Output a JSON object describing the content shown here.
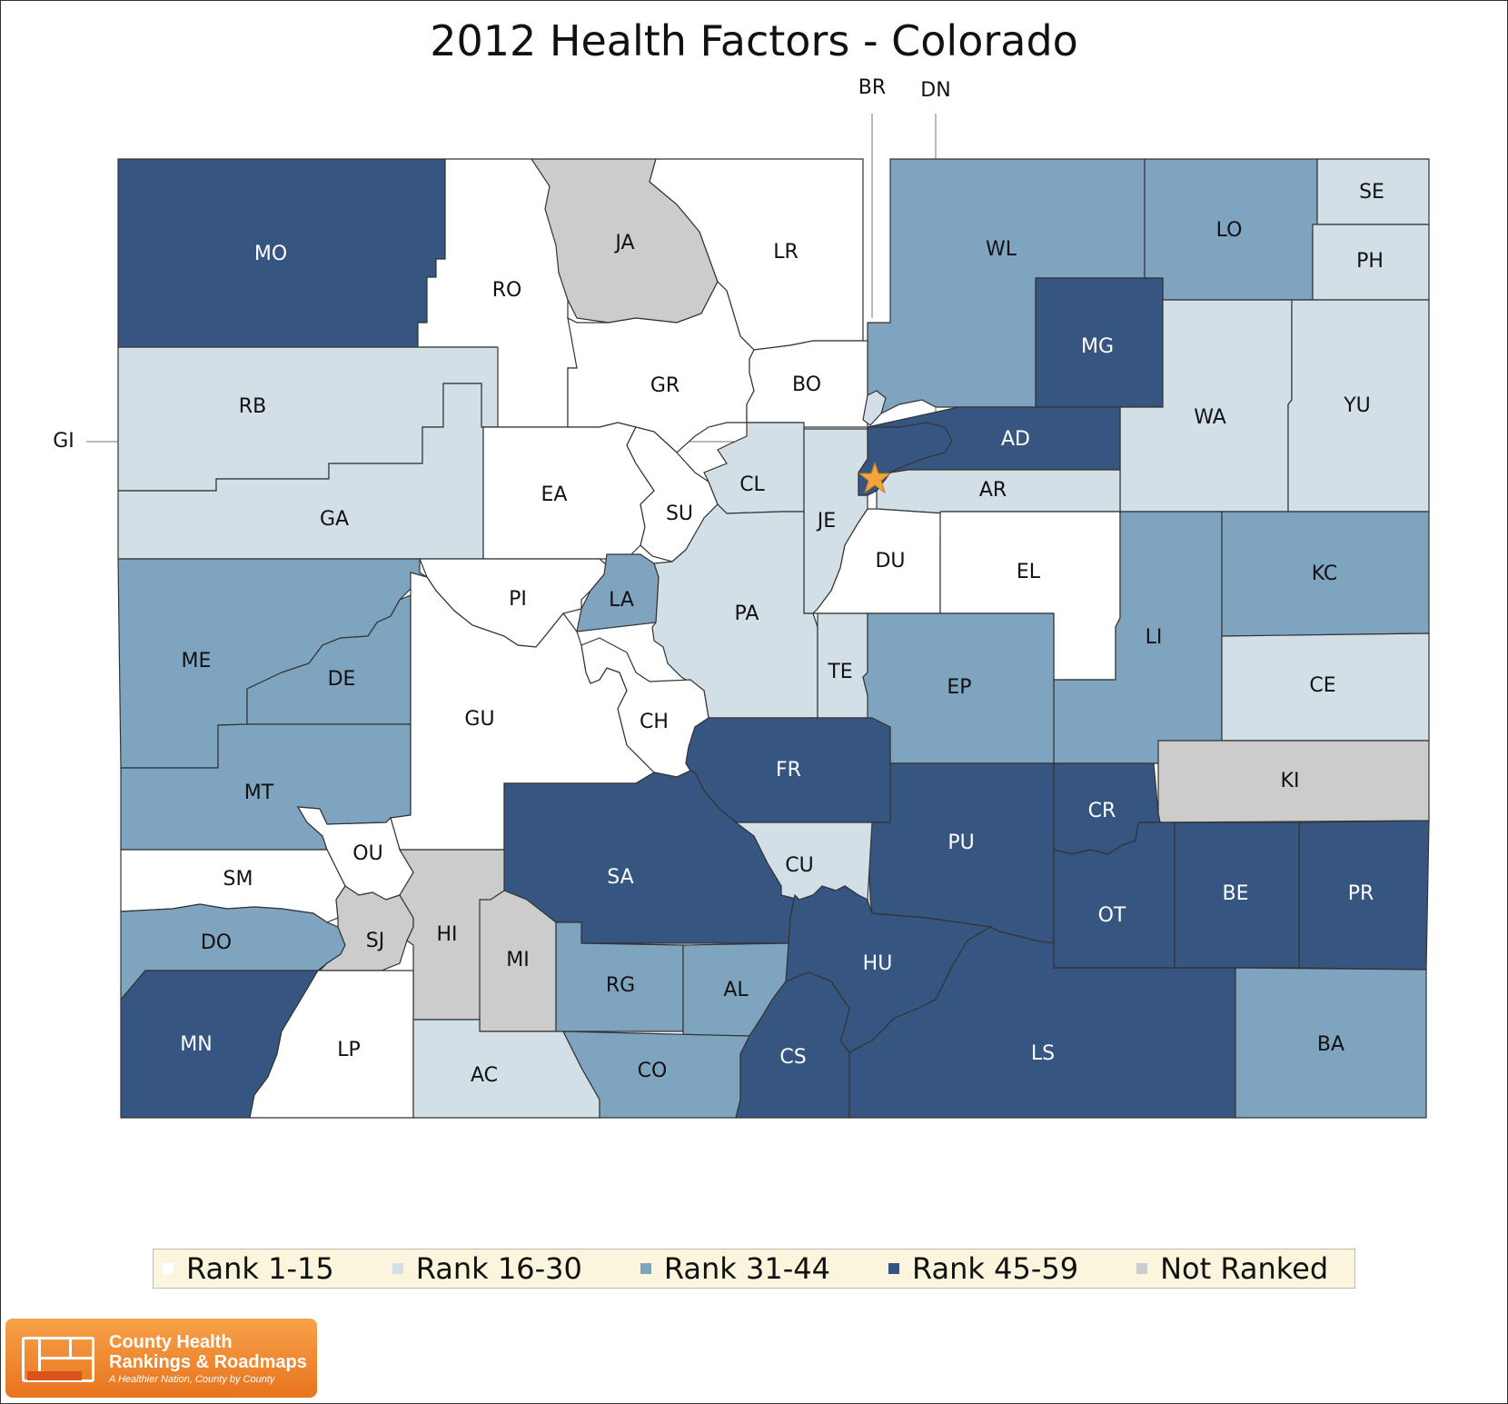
{
  "title": "2012 Health Factors - Colorado",
  "colors": {
    "rank_1_15": "#ffffff",
    "rank_16_30": "#d3dfe7",
    "rank_31_44": "#7fa4bf",
    "rank_45_59": "#365681",
    "not_ranked": "#cccccc",
    "star": "#f5a43a"
  },
  "legend": [
    {
      "label": "Rank 1-15",
      "color_key": "rank_1_15"
    },
    {
      "label": "Rank 16-30",
      "color_key": "rank_16_30"
    },
    {
      "label": "Rank 31-44",
      "color_key": "rank_31_44"
    },
    {
      "label": "Rank 45-59",
      "color_key": "rank_45_59"
    },
    {
      "label": "Not Ranked",
      "color_key": "not_ranked"
    }
  ],
  "counties": [
    {
      "abbr": "MO",
      "rank_group": "rank_45_59"
    },
    {
      "abbr": "RO",
      "rank_group": "rank_1_15"
    },
    {
      "abbr": "JA",
      "rank_group": "not_ranked"
    },
    {
      "abbr": "LR",
      "rank_group": "rank_1_15"
    },
    {
      "abbr": "WL",
      "rank_group": "rank_31_44"
    },
    {
      "abbr": "LO",
      "rank_group": "rank_31_44"
    },
    {
      "abbr": "SE",
      "rank_group": "rank_16_30"
    },
    {
      "abbr": "PH",
      "rank_group": "rank_16_30"
    },
    {
      "abbr": "MG",
      "rank_group": "rank_45_59"
    },
    {
      "abbr": "RB",
      "rank_group": "rank_16_30"
    },
    {
      "abbr": "GR",
      "rank_group": "rank_1_15"
    },
    {
      "abbr": "BO",
      "rank_group": "rank_1_15"
    },
    {
      "abbr": "WA",
      "rank_group": "rank_16_30"
    },
    {
      "abbr": "YU",
      "rank_group": "rank_16_30"
    },
    {
      "abbr": "AD",
      "rank_group": "rank_45_59"
    },
    {
      "abbr": "AR",
      "rank_group": "rank_16_30"
    },
    {
      "abbr": "GA",
      "rank_group": "rank_16_30"
    },
    {
      "abbr": "EA",
      "rank_group": "rank_1_15"
    },
    {
      "abbr": "SU",
      "rank_group": "rank_1_15"
    },
    {
      "abbr": "CL",
      "rank_group": "rank_16_30"
    },
    {
      "abbr": "JE",
      "rank_group": "rank_16_30"
    },
    {
      "abbr": "DU",
      "rank_group": "rank_1_15"
    },
    {
      "abbr": "EL",
      "rank_group": "rank_1_15"
    },
    {
      "abbr": "LI",
      "rank_group": "rank_31_44"
    },
    {
      "abbr": "KC",
      "rank_group": "rank_31_44"
    },
    {
      "abbr": "CE",
      "rank_group": "rank_16_30"
    },
    {
      "abbr": "ME",
      "rank_group": "rank_31_44"
    },
    {
      "abbr": "DE",
      "rank_group": "rank_31_44"
    },
    {
      "abbr": "PI",
      "rank_group": "rank_1_15"
    },
    {
      "abbr": "LA",
      "rank_group": "rank_31_44"
    },
    {
      "abbr": "PA",
      "rank_group": "rank_16_30"
    },
    {
      "abbr": "TE",
      "rank_group": "rank_16_30"
    },
    {
      "abbr": "EP",
      "rank_group": "rank_31_44"
    },
    {
      "abbr": "MT",
      "rank_group": "rank_31_44"
    },
    {
      "abbr": "GU",
      "rank_group": "rank_1_15"
    },
    {
      "abbr": "CH",
      "rank_group": "rank_1_15"
    },
    {
      "abbr": "FR",
      "rank_group": "rank_45_59"
    },
    {
      "abbr": "KI",
      "rank_group": "not_ranked"
    },
    {
      "abbr": "CR",
      "rank_group": "rank_45_59"
    },
    {
      "abbr": "PU",
      "rank_group": "rank_45_59"
    },
    {
      "abbr": "OU",
      "rank_group": "rank_1_15"
    },
    {
      "abbr": "SM",
      "rank_group": "rank_1_15"
    },
    {
      "abbr": "SA",
      "rank_group": "rank_45_59"
    },
    {
      "abbr": "CU",
      "rank_group": "rank_16_30"
    },
    {
      "abbr": "OT",
      "rank_group": "rank_45_59"
    },
    {
      "abbr": "BE",
      "rank_group": "rank_45_59"
    },
    {
      "abbr": "PR",
      "rank_group": "rank_45_59"
    },
    {
      "abbr": "DO",
      "rank_group": "rank_31_44"
    },
    {
      "abbr": "SJ",
      "rank_group": "not_ranked"
    },
    {
      "abbr": "HI",
      "rank_group": "not_ranked"
    },
    {
      "abbr": "MI",
      "rank_group": "not_ranked"
    },
    {
      "abbr": "HU",
      "rank_group": "rank_45_59"
    },
    {
      "abbr": "RG",
      "rank_group": "rank_31_44"
    },
    {
      "abbr": "AL",
      "rank_group": "rank_31_44"
    },
    {
      "abbr": "MN",
      "rank_group": "rank_45_59"
    },
    {
      "abbr": "LP",
      "rank_group": "rank_1_15"
    },
    {
      "abbr": "AC",
      "rank_group": "rank_16_30"
    },
    {
      "abbr": "CO",
      "rank_group": "rank_31_44"
    },
    {
      "abbr": "CS",
      "rank_group": "rank_45_59"
    },
    {
      "abbr": "LS",
      "rank_group": "rank_45_59"
    },
    {
      "abbr": "BA",
      "rank_group": "rank_31_44"
    },
    {
      "abbr": "DN",
      "rank_group": "rank_45_59"
    },
    {
      "abbr": "BR",
      "rank_group": "rank_16_30"
    }
  ],
  "callout_labels": {
    "br": "BR",
    "dn": "DN",
    "gi": "GI"
  },
  "logo": {
    "line1": "County Health",
    "line2": "Rankings & Roadmaps",
    "tagline": "A Healthier Nation, County by County"
  }
}
